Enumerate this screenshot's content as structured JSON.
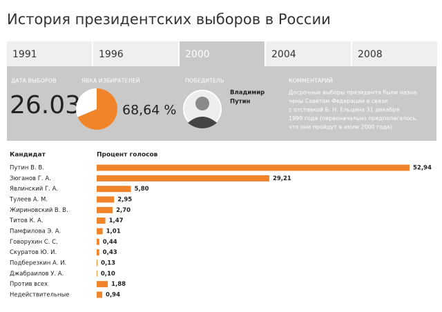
{
  "title": "История президентских выборов в России",
  "tabs": [
    "1991",
    "1996",
    "2000",
    "2004",
    "2008"
  ],
  "active_tab": 2,
  "info": {
    "date_label": "ДАТА ВЫБОРОВ",
    "date": "26.03",
    "turnout_label": "ЯВКА ИЗБИРАТЕЛЕЙ",
    "winner_label": "ПОБЕДИТЕЛЬ",
    "winner_name": [
      "Владимир",
      "Путин"
    ],
    "comment_label": "КОММЕНТАРИЙ",
    "comment": [
      "Досрочные выборы президента были назна-",
      "чены Советом Федерации в связи",
      "с отставкой Б. Н. Ельцина 31 декабря",
      "1999 года (первоначально предполагалось,",
      "что они пройдут в июле 2000 года)"
    ]
  },
  "chart_data": [
    {
      "type": "pie",
      "values": [
        68.64
      ],
      "value_labels": [
        "68,64 %"
      ],
      "color": "#f0842a"
    },
    {
      "type": "bar",
      "orientation": "horizontal",
      "category_header": "Кандидат",
      "value_header": "Процент голосов",
      "color": "#f0842a",
      "categories": [
        "Путин В. В.",
        "Зюганов Г. А.",
        "Явлинский Г. А.",
        "Тулеев А. М.",
        "Жириновский В. В.",
        "Титов К. А.",
        "Памфилова Э. А.",
        "Говорухин С. С.",
        "Скуратов Ю. И.",
        "Подберезкин А. И.",
        "Джабраилов У. А.",
        "Против всех",
        "Недействительные"
      ],
      "values": [
        52.94,
        29.21,
        5.8,
        2.95,
        2.7,
        1.47,
        1.01,
        0.44,
        0.43,
        0.13,
        0.1,
        1.88,
        0.94
      ],
      "value_labels": [
        "52,94",
        "29,21",
        "5,80",
        "2,95",
        "2,70",
        "1,47",
        "1,01",
        "0,44",
        "0,43",
        "0,13",
        "0,10",
        "1,88",
        "0,94"
      ]
    }
  ]
}
